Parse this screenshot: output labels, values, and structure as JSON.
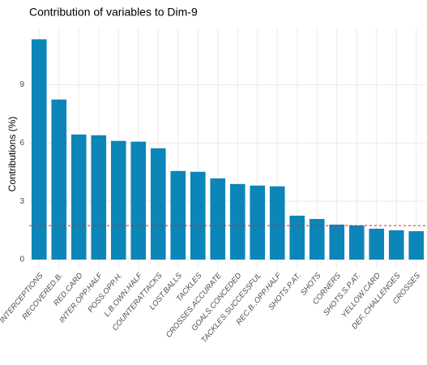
{
  "chart_data": {
    "type": "bar",
    "title": "Contribution of variables to Dim-9",
    "y_label": "Contributions (%)",
    "categories": [
      "INTERCEPTIONS",
      "RECOVERED.B.",
      "RED.CARD",
      "INTER.OPP.HALF",
      "POSS.OPP.H.",
      "L.B.OWN.HALF",
      "COUNTERATTACKS",
      "LOST.BALLS",
      "TACKLES",
      "CROSSES.ACCURATE",
      "GOALS.CONCEDED",
      "TACKLES.SUCCESSFUL",
      "REC.B..OPP.HALF",
      "SHOTS.P.AT.",
      "SHOTS",
      "CORNERS",
      "SHOTS.S.P.AT.",
      "YELLOW.CARD",
      "DEF..CHALLENGES",
      "CROSSES"
    ],
    "values": [
      11.34,
      8.24,
      6.44,
      6.4,
      6.11,
      6.07,
      5.73,
      4.56,
      4.52,
      4.18,
      3.89,
      3.81,
      3.77,
      2.26,
      2.09,
      1.8,
      1.76,
      1.59,
      1.51,
      1.46
    ],
    "color": "#0c86b8",
    "reference_line": 1.75,
    "reference_color": "#e41a1c",
    "ylim": [
      -0.5,
      11.9
    ],
    "yticks": [
      0,
      3,
      6,
      9
    ],
    "grid": true
  }
}
